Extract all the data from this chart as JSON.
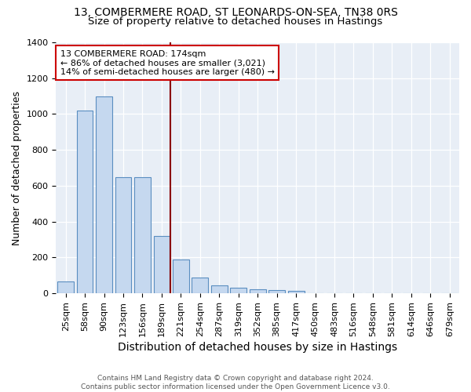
{
  "title1": "13, COMBERMERE ROAD, ST LEONARDS-ON-SEA, TN38 0RS",
  "title2": "Size of property relative to detached houses in Hastings",
  "xlabel": "Distribution of detached houses by size in Hastings",
  "ylabel": "Number of detached properties",
  "categories": [
    "25sqm",
    "58sqm",
    "90sqm",
    "123sqm",
    "156sqm",
    "189sqm",
    "221sqm",
    "254sqm",
    "287sqm",
    "319sqm",
    "352sqm",
    "385sqm",
    "417sqm",
    "450sqm",
    "483sqm",
    "516sqm",
    "548sqm",
    "581sqm",
    "614sqm",
    "646sqm",
    "679sqm"
  ],
  "values": [
    65,
    1020,
    1100,
    650,
    650,
    320,
    188,
    88,
    45,
    30,
    22,
    20,
    12,
    0,
    0,
    0,
    0,
    0,
    0,
    0,
    0
  ],
  "bar_color": "#c5d8ef",
  "bar_edge_color": "#5a8ec0",
  "vline_x": 5.45,
  "vline_color": "#8b0000",
  "annotation_line1": "13 COMBERMERE ROAD: 174sqm",
  "annotation_line2": "← 86% of detached houses are smaller (3,021)",
  "annotation_line3": "14% of semi-detached houses are larger (480) →",
  "annotation_box_color": "white",
  "annotation_box_edge": "#cc0000",
  "ylim": [
    0,
    1400
  ],
  "yticks": [
    0,
    200,
    400,
    600,
    800,
    1000,
    1200,
    1400
  ],
  "bg_color": "#e8eef6",
  "grid_color": "white",
  "footer": "Contains HM Land Registry data © Crown copyright and database right 2024.\nContains public sector information licensed under the Open Government Licence v3.0.",
  "title1_fontsize": 10,
  "title2_fontsize": 9.5,
  "xlabel_fontsize": 10,
  "ylabel_fontsize": 9,
  "tick_fontsize": 8,
  "annot_fontsize": 8
}
